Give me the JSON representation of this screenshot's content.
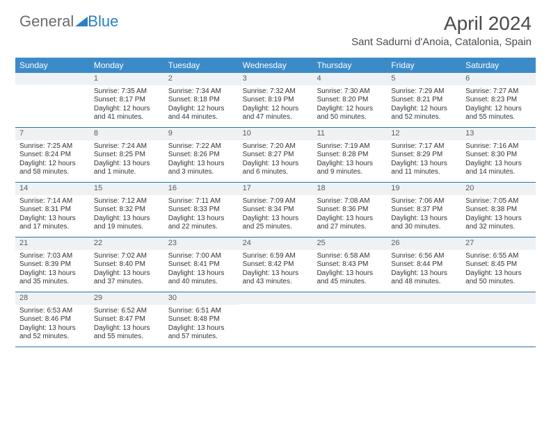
{
  "logo": {
    "text_gray": "General",
    "text_blue": "Blue"
  },
  "title": "April 2024",
  "location": "Sant Sadurni d'Anoia, Catalonia, Spain",
  "colors": {
    "header_bg": "#3b8bc9",
    "header_text": "#ffffff",
    "daynum_bg": "#eef2f5",
    "week_border": "#2b6fa8",
    "logo_gray": "#6b6b6b",
    "logo_blue": "#2b7fc4"
  },
  "day_names": [
    "Sunday",
    "Monday",
    "Tuesday",
    "Wednesday",
    "Thursday",
    "Friday",
    "Saturday"
  ],
  "weeks": [
    [
      null,
      {
        "num": "1",
        "sunrise": "Sunrise: 7:35 AM",
        "sunset": "Sunset: 8:17 PM",
        "day1": "Daylight: 12 hours",
        "day2": "and 41 minutes."
      },
      {
        "num": "2",
        "sunrise": "Sunrise: 7:34 AM",
        "sunset": "Sunset: 8:18 PM",
        "day1": "Daylight: 12 hours",
        "day2": "and 44 minutes."
      },
      {
        "num": "3",
        "sunrise": "Sunrise: 7:32 AM",
        "sunset": "Sunset: 8:19 PM",
        "day1": "Daylight: 12 hours",
        "day2": "and 47 minutes."
      },
      {
        "num": "4",
        "sunrise": "Sunrise: 7:30 AM",
        "sunset": "Sunset: 8:20 PM",
        "day1": "Daylight: 12 hours",
        "day2": "and 50 minutes."
      },
      {
        "num": "5",
        "sunrise": "Sunrise: 7:29 AM",
        "sunset": "Sunset: 8:21 PM",
        "day1": "Daylight: 12 hours",
        "day2": "and 52 minutes."
      },
      {
        "num": "6",
        "sunrise": "Sunrise: 7:27 AM",
        "sunset": "Sunset: 8:23 PM",
        "day1": "Daylight: 12 hours",
        "day2": "and 55 minutes."
      }
    ],
    [
      {
        "num": "7",
        "sunrise": "Sunrise: 7:25 AM",
        "sunset": "Sunset: 8:24 PM",
        "day1": "Daylight: 12 hours",
        "day2": "and 58 minutes."
      },
      {
        "num": "8",
        "sunrise": "Sunrise: 7:24 AM",
        "sunset": "Sunset: 8:25 PM",
        "day1": "Daylight: 13 hours",
        "day2": "and 1 minute."
      },
      {
        "num": "9",
        "sunrise": "Sunrise: 7:22 AM",
        "sunset": "Sunset: 8:26 PM",
        "day1": "Daylight: 13 hours",
        "day2": "and 3 minutes."
      },
      {
        "num": "10",
        "sunrise": "Sunrise: 7:20 AM",
        "sunset": "Sunset: 8:27 PM",
        "day1": "Daylight: 13 hours",
        "day2": "and 6 minutes."
      },
      {
        "num": "11",
        "sunrise": "Sunrise: 7:19 AM",
        "sunset": "Sunset: 8:28 PM",
        "day1": "Daylight: 13 hours",
        "day2": "and 9 minutes."
      },
      {
        "num": "12",
        "sunrise": "Sunrise: 7:17 AM",
        "sunset": "Sunset: 8:29 PM",
        "day1": "Daylight: 13 hours",
        "day2": "and 11 minutes."
      },
      {
        "num": "13",
        "sunrise": "Sunrise: 7:16 AM",
        "sunset": "Sunset: 8:30 PM",
        "day1": "Daylight: 13 hours",
        "day2": "and 14 minutes."
      }
    ],
    [
      {
        "num": "14",
        "sunrise": "Sunrise: 7:14 AM",
        "sunset": "Sunset: 8:31 PM",
        "day1": "Daylight: 13 hours",
        "day2": "and 17 minutes."
      },
      {
        "num": "15",
        "sunrise": "Sunrise: 7:12 AM",
        "sunset": "Sunset: 8:32 PM",
        "day1": "Daylight: 13 hours",
        "day2": "and 19 minutes."
      },
      {
        "num": "16",
        "sunrise": "Sunrise: 7:11 AM",
        "sunset": "Sunset: 8:33 PM",
        "day1": "Daylight: 13 hours",
        "day2": "and 22 minutes."
      },
      {
        "num": "17",
        "sunrise": "Sunrise: 7:09 AM",
        "sunset": "Sunset: 8:34 PM",
        "day1": "Daylight: 13 hours",
        "day2": "and 25 minutes."
      },
      {
        "num": "18",
        "sunrise": "Sunrise: 7:08 AM",
        "sunset": "Sunset: 8:36 PM",
        "day1": "Daylight: 13 hours",
        "day2": "and 27 minutes."
      },
      {
        "num": "19",
        "sunrise": "Sunrise: 7:06 AM",
        "sunset": "Sunset: 8:37 PM",
        "day1": "Daylight: 13 hours",
        "day2": "and 30 minutes."
      },
      {
        "num": "20",
        "sunrise": "Sunrise: 7:05 AM",
        "sunset": "Sunset: 8:38 PM",
        "day1": "Daylight: 13 hours",
        "day2": "and 32 minutes."
      }
    ],
    [
      {
        "num": "21",
        "sunrise": "Sunrise: 7:03 AM",
        "sunset": "Sunset: 8:39 PM",
        "day1": "Daylight: 13 hours",
        "day2": "and 35 minutes."
      },
      {
        "num": "22",
        "sunrise": "Sunrise: 7:02 AM",
        "sunset": "Sunset: 8:40 PM",
        "day1": "Daylight: 13 hours",
        "day2": "and 37 minutes."
      },
      {
        "num": "23",
        "sunrise": "Sunrise: 7:00 AM",
        "sunset": "Sunset: 8:41 PM",
        "day1": "Daylight: 13 hours",
        "day2": "and 40 minutes."
      },
      {
        "num": "24",
        "sunrise": "Sunrise: 6:59 AM",
        "sunset": "Sunset: 8:42 PM",
        "day1": "Daylight: 13 hours",
        "day2": "and 43 minutes."
      },
      {
        "num": "25",
        "sunrise": "Sunrise: 6:58 AM",
        "sunset": "Sunset: 8:43 PM",
        "day1": "Daylight: 13 hours",
        "day2": "and 45 minutes."
      },
      {
        "num": "26",
        "sunrise": "Sunrise: 6:56 AM",
        "sunset": "Sunset: 8:44 PM",
        "day1": "Daylight: 13 hours",
        "day2": "and 48 minutes."
      },
      {
        "num": "27",
        "sunrise": "Sunrise: 6:55 AM",
        "sunset": "Sunset: 8:45 PM",
        "day1": "Daylight: 13 hours",
        "day2": "and 50 minutes."
      }
    ],
    [
      {
        "num": "28",
        "sunrise": "Sunrise: 6:53 AM",
        "sunset": "Sunset: 8:46 PM",
        "day1": "Daylight: 13 hours",
        "day2": "and 52 minutes."
      },
      {
        "num": "29",
        "sunrise": "Sunrise: 6:52 AM",
        "sunset": "Sunset: 8:47 PM",
        "day1": "Daylight: 13 hours",
        "day2": "and 55 minutes."
      },
      {
        "num": "30",
        "sunrise": "Sunrise: 6:51 AM",
        "sunset": "Sunset: 8:48 PM",
        "day1": "Daylight: 13 hours",
        "day2": "and 57 minutes."
      },
      null,
      null,
      null,
      null
    ]
  ]
}
